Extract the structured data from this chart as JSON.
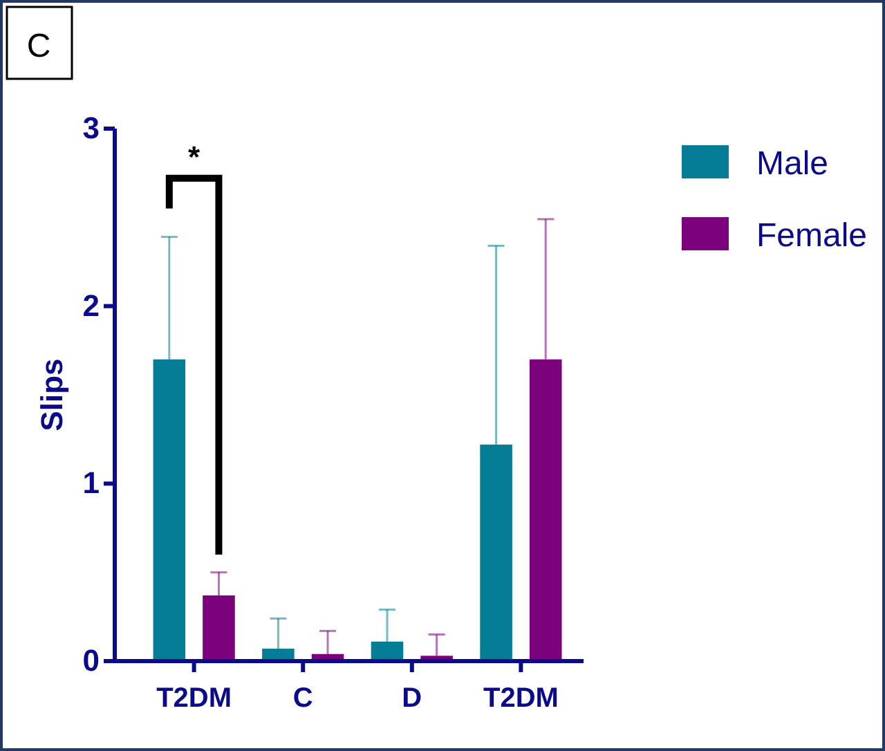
{
  "chart_data": {
    "type": "bar",
    "ylabel": "Slips",
    "categories": [
      "T2DM",
      "C",
      "D",
      "T2DM"
    ],
    "series": [
      {
        "name": "Male",
        "color": "#057d96",
        "values": [
          1.7,
          0.07,
          0.11,
          1.22
        ],
        "errors": [
          [
            1.7,
            2.39
          ],
          [
            0.07,
            0.24
          ],
          [
            0.11,
            0.29
          ],
          [
            1.22,
            2.34
          ]
        ]
      },
      {
        "name": "Female",
        "color": "#7b007b",
        "values": [
          0.37,
          0.04,
          0.03,
          1.7
        ],
        "errors": [
          [
            0.37,
            0.5
          ],
          [
            0.04,
            0.17
          ],
          [
            0.03,
            0.15
          ],
          [
            1.7,
            2.49
          ]
        ]
      }
    ],
    "ylim": [
      0,
      3
    ],
    "yticks": [
      0,
      1,
      2,
      3
    ],
    "grid": false,
    "legend": "top right",
    "annotations": [
      "C",
      "*"
    ]
  }
}
